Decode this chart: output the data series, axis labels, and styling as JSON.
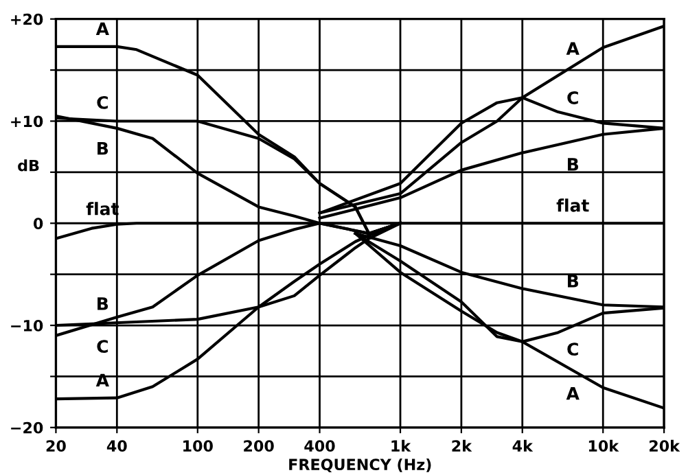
{
  "chart_data": {
    "type": "line",
    "xlabel": "FREQUENCY (Hz)",
    "ylabel": "dB",
    "log": "x",
    "grid": true,
    "marker": "none",
    "line_style": "solid",
    "xlim": [
      20,
      20000
    ],
    "ylim": [
      -20,
      20
    ],
    "xticks": [
      20,
      40,
      100,
      200,
      400,
      {
        "value": 1000,
        "label": "1k"
      },
      {
        "value": 2000,
        "label": "2k"
      },
      {
        "value": 4000,
        "label": "4k"
      },
      {
        "value": 10000,
        "label": "10k"
      },
      {
        "value": 20000,
        "label": "20k"
      }
    ],
    "yticks": [
      {
        "value": -20,
        "label": "−20"
      },
      {
        "value": -15,
        "label": null
      },
      {
        "value": -10,
        "label": "−10"
      },
      {
        "value": -5,
        "label": null
      },
      0,
      {
        "value": 5,
        "label": null
      },
      {
        "value": 10,
        "label": "+10"
      },
      {
        "value": 15,
        "label": null
      },
      {
        "value": 20,
        "label": "+20"
      }
    ],
    "series": [
      {
        "name": "A",
        "color": "#000000",
        "x": [
          20,
          40,
          50,
          100,
          200,
          300,
          400,
          600,
          700,
          1000
        ],
        "values": [
          17.3,
          17.3,
          17,
          14.5,
          8.7,
          6.5,
          3.9,
          1.6,
          -1,
          0
        ]
      },
      {
        "name": "C",
        "color": "#000000",
        "x": [
          20,
          40,
          100,
          200,
          300,
          400,
          600,
          700,
          1000
        ],
        "values": [
          10.3,
          10,
          10,
          8.3,
          6.3,
          3.9,
          1.6,
          -1,
          0
        ]
      },
      {
        "name": "B",
        "color": "#000000",
        "x": [
          20,
          40,
          60,
          100,
          200,
          300,
          400,
          700,
          1000
        ],
        "values": [
          10.5,
          9.3,
          8.3,
          4.9,
          1.6,
          0.7,
          0,
          -1,
          0
        ]
      },
      {
        "name": "flat",
        "color": "#000000",
        "x": [
          20,
          30,
          40,
          50,
          1000,
          20000
        ],
        "values": [
          -1.5,
          -0.5,
          -0.1,
          0,
          0,
          0
        ]
      },
      {
        "name": "B",
        "color": "#000000",
        "x": [
          20,
          40,
          60,
          100,
          200,
          300,
          400,
          700,
          1000
        ],
        "values": [
          -11,
          -9.2,
          -8.2,
          -5.1,
          -1.7,
          -0.6,
          0,
          -1,
          0
        ]
      },
      {
        "name": "C",
        "color": "#000000",
        "x": [
          20,
          100,
          200,
          300,
          400,
          600,
          700,
          1000
        ],
        "values": [
          -10,
          -9.4,
          -8.2,
          -7.1,
          -5.1,
          -2.4,
          -1.5,
          0
        ]
      },
      {
        "name": "A",
        "color": "#000000",
        "x": [
          20,
          40,
          60,
          100,
          200,
          300,
          400,
          600,
          700,
          1000
        ],
        "values": [
          -17.2,
          -17.1,
          -16,
          -13.3,
          -8.2,
          -5.7,
          -4,
          -1.8,
          -1.2,
          0
        ]
      },
      {
        "name": "A",
        "color": "#000000",
        "x": [
          400,
          1000,
          2000,
          3000,
          4000,
          10000,
          20000
        ],
        "values": [
          1,
          2.9,
          7.9,
          10,
          12.3,
          17.2,
          19.3
        ]
      },
      {
        "name": "C",
        "color": "#000000",
        "x": [
          400,
          1000,
          2000,
          3000,
          4000,
          6000,
          10000,
          20000
        ],
        "values": [
          1,
          3.9,
          9.8,
          11.8,
          12.3,
          10.9,
          9.8,
          9.3
        ]
      },
      {
        "name": "B",
        "color": "#000000",
        "x": [
          400,
          1000,
          2000,
          4000,
          10000,
          20000
        ],
        "values": [
          0.5,
          2.5,
          5.2,
          6.9,
          8.7,
          9.3
        ]
      },
      {
        "name": "B",
        "color": "#000000",
        "x": [
          600,
          1000,
          2000,
          4000,
          10000,
          20000
        ],
        "values": [
          -1,
          -2.2,
          -4.8,
          -6.4,
          -8,
          -8.2
        ]
      },
      {
        "name": "C",
        "color": "#000000",
        "x": [
          600,
          1000,
          2000,
          3000,
          4000,
          6000,
          10000,
          20000
        ],
        "values": [
          -1,
          -3.7,
          -7.7,
          -11.1,
          -11.6,
          -10.7,
          -8.8,
          -8.3
        ]
      },
      {
        "name": "A",
        "color": "#000000",
        "x": [
          600,
          1000,
          2000,
          3000,
          4000,
          10000,
          20000
        ],
        "values": [
          -1,
          -4.8,
          -8.6,
          -10.7,
          -11.6,
          -16.1,
          -18.1
        ]
      }
    ]
  }
}
